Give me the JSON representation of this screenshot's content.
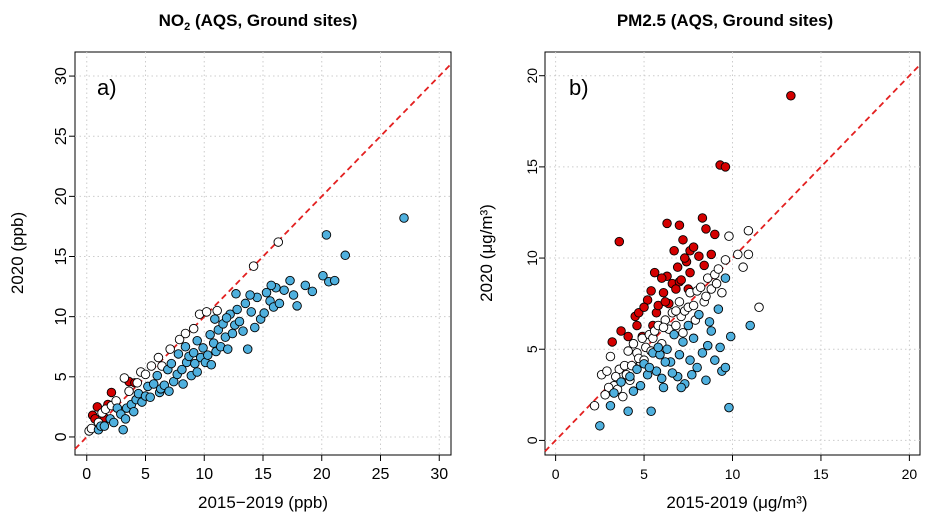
{
  "colors": {
    "increase": "#d40000",
    "similar": "#ffffff",
    "decrease": "#4fb0de",
    "reference_line": "#e32020",
    "grid": "#cccccc"
  },
  "chart_data": [
    {
      "type": "scatter",
      "title_main": "NO",
      "title_sub": "2",
      "title_rest": " (AQS, Ground sites)",
      "panel_label": "a)",
      "xlabel": "2015−2019 (ppb)",
      "ylabel": "2020 (ppb)",
      "xlim": [
        -1,
        31
      ],
      "ylim": [
        -1.5,
        32
      ],
      "xticks": [
        0,
        5,
        10,
        15,
        20,
        25,
        30
      ],
      "yticks": [
        0,
        5,
        10,
        15,
        20,
        25,
        30
      ],
      "reference_line": "y = x",
      "grid": true,
      "series": [
        {
          "color_key": "increase",
          "points": [
            [
              0.5,
              1.8
            ],
            [
              0.9,
              2.5
            ],
            [
              1.8,
              2.7
            ],
            [
              2.1,
              3.7
            ],
            [
              0.7,
              1.5
            ],
            [
              1.5,
              1.6
            ],
            [
              3.6,
              4.6
            ],
            [
              4.1,
              4.5
            ]
          ]
        },
        {
          "color_key": "similar",
          "points": [
            [
              0.2,
              0.5
            ],
            [
              0.4,
              0.7
            ],
            [
              1.0,
              1.2
            ],
            [
              1.3,
              2.0
            ],
            [
              1.6,
              2.3
            ],
            [
              2.1,
              2.6
            ],
            [
              2.5,
              3.0
            ],
            [
              3.2,
              4.9
            ],
            [
              3.6,
              3.8
            ],
            [
              4.3,
              4.5
            ],
            [
              4.6,
              5.4
            ],
            [
              5.0,
              5.2
            ],
            [
              5.5,
              5.9
            ],
            [
              6.1,
              6.6
            ],
            [
              6.4,
              5.9
            ],
            [
              7.1,
              7.3
            ],
            [
              7.9,
              8.1
            ],
            [
              8.4,
              8.6
            ],
            [
              9.1,
              9.0
            ],
            [
              9.6,
              10.2
            ],
            [
              10.2,
              10.4
            ],
            [
              11.1,
              10.5
            ],
            [
              14.2,
              14.2
            ],
            [
              16.3,
              16.2
            ]
          ]
        },
        {
          "color_key": "decrease",
          "points": [
            [
              1.0,
              0.6
            ],
            [
              1.2,
              0.9
            ],
            [
              1.5,
              0.9
            ],
            [
              2.0,
              1.5
            ],
            [
              2.3,
              1.2
            ],
            [
              2.6,
              2.4
            ],
            [
              2.9,
              1.9
            ],
            [
              3.1,
              0.6
            ],
            [
              3.3,
              1.5
            ],
            [
              3.4,
              2.4
            ],
            [
              3.8,
              2.7
            ],
            [
              4.0,
              2.1
            ],
            [
              4.2,
              3.1
            ],
            [
              4.4,
              3.6
            ],
            [
              4.7,
              2.9
            ],
            [
              5.0,
              3.4
            ],
            [
              5.2,
              4.2
            ],
            [
              5.4,
              3.3
            ],
            [
              5.7,
              4.4
            ],
            [
              6.0,
              5.1
            ],
            [
              6.2,
              3.7
            ],
            [
              6.3,
              4.0
            ],
            [
              6.6,
              4.3
            ],
            [
              6.9,
              5.6
            ],
            [
              7.0,
              3.8
            ],
            [
              7.2,
              6.1
            ],
            [
              7.4,
              4.6
            ],
            [
              7.7,
              5.2
            ],
            [
              7.8,
              6.9
            ],
            [
              8.1,
              5.6
            ],
            [
              8.2,
              4.4
            ],
            [
              8.5,
              6.2
            ],
            [
              8.7,
              6.7
            ],
            [
              8.9,
              5.1
            ],
            [
              9.1,
              7.0
            ],
            [
              9.2,
              6.1
            ],
            [
              9.4,
              5.4
            ],
            [
              9.7,
              6.6
            ],
            [
              9.9,
              7.4
            ],
            [
              10.1,
              6.2
            ],
            [
              10.3,
              6.8
            ],
            [
              10.5,
              8.5
            ],
            [
              10.6,
              6.0
            ],
            [
              10.8,
              7.8
            ],
            [
              11.0,
              7.1
            ],
            [
              11.2,
              8.9
            ],
            [
              11.4,
              7.5
            ],
            [
              11.6,
              9.4
            ],
            [
              11.8,
              8.3
            ],
            [
              12.0,
              7.3
            ],
            [
              12.2,
              10.2
            ],
            [
              12.4,
              8.6
            ],
            [
              12.6,
              9.3
            ],
            [
              12.8,
              10.6
            ],
            [
              13.0,
              9.6
            ],
            [
              13.3,
              8.8
            ],
            [
              13.5,
              11.1
            ],
            [
              13.7,
              7.3
            ],
            [
              14.0,
              10.4
            ],
            [
              14.3,
              9.1
            ],
            [
              14.5,
              11.6
            ],
            [
              14.8,
              9.8
            ],
            [
              15.1,
              10.3
            ],
            [
              15.3,
              12.0
            ],
            [
              15.6,
              11.3
            ],
            [
              15.9,
              10.8
            ],
            [
              16.1,
              12.4
            ],
            [
              16.4,
              11.1
            ],
            [
              16.8,
              12.2
            ],
            [
              17.3,
              13.0
            ],
            [
              17.6,
              11.8
            ],
            [
              17.9,
              10.9
            ],
            [
              18.6,
              12.6
            ],
            [
              19.2,
              12.1
            ],
            [
              20.1,
              13.4
            ],
            [
              20.4,
              16.8
            ],
            [
              20.6,
              12.9
            ],
            [
              21.1,
              13.0
            ],
            [
              22.0,
              15.1
            ],
            [
              27.0,
              18.2
            ],
            [
              11.9,
              9.9
            ],
            [
              13.9,
              11.8
            ],
            [
              15.7,
              12.6
            ],
            [
              9.4,
              8.0
            ],
            [
              10.9,
              9.8
            ],
            [
              8.4,
              7.5
            ],
            [
              12.7,
              11.9
            ]
          ]
        }
      ]
    },
    {
      "type": "scatter",
      "title_main": "PM2.5 (AQS, Ground sites)",
      "title_sub": "",
      "title_rest": "",
      "panel_label": "b)",
      "xlabel": "2015-2019 (μg/m³)",
      "ylabel": "2020 (μg/m³)",
      "xlim": [
        -0.6,
        20.6
      ],
      "ylim": [
        -0.8,
        21.3
      ],
      "xticks": [
        0,
        5,
        10,
        15,
        20
      ],
      "yticks": [
        0,
        5,
        10,
        15,
        20
      ],
      "reference_line": "y = x",
      "grid": true,
      "series": [
        {
          "color_key": "increase",
          "points": [
            [
              13.3,
              18.9
            ],
            [
              9.3,
              15.1
            ],
            [
              9.6,
              15.0
            ],
            [
              8.3,
              12.2
            ],
            [
              6.3,
              11.9
            ],
            [
              7.0,
              11.8
            ],
            [
              3.6,
              10.9
            ],
            [
              7.2,
              11.0
            ],
            [
              7.6,
              10.4
            ],
            [
              8.5,
              11.6
            ],
            [
              9.0,
              11.3
            ],
            [
              8.8,
              10.2
            ],
            [
              6.9,
              9.5
            ],
            [
              7.4,
              9.8
            ],
            [
              6.6,
              8.6
            ],
            [
              5.2,
              7.7
            ],
            [
              6.4,
              7.5
            ],
            [
              5.7,
              7.0
            ],
            [
              4.5,
              6.8
            ],
            [
              4.9,
              5.7
            ],
            [
              6.1,
              8.1
            ],
            [
              6.3,
              9.0
            ],
            [
              5.5,
              6.3
            ],
            [
              5.6,
              9.2
            ],
            [
              7.0,
              8.7
            ],
            [
              7.1,
              8.8
            ],
            [
              7.3,
              10.0
            ],
            [
              8.1,
              10.1
            ],
            [
              3.2,
              5.4
            ],
            [
              4.1,
              5.7
            ],
            [
              3.7,
              6.0
            ],
            [
              5.8,
              7.4
            ],
            [
              6.8,
              8.3
            ],
            [
              6.2,
              7.6
            ],
            [
              7.6,
              9.2
            ],
            [
              4.7,
              7.0
            ],
            [
              5.0,
              7.3
            ],
            [
              7.5,
              8.3
            ],
            [
              8.4,
              9.6
            ],
            [
              6.7,
              10.4
            ],
            [
              6.0,
              8.9
            ],
            [
              5.4,
              8.2
            ],
            [
              4.6,
              6.3
            ],
            [
              7.8,
              10.6
            ]
          ]
        },
        {
          "color_key": "similar",
          "points": [
            [
              2.2,
              1.9
            ],
            [
              2.6,
              3.6
            ],
            [
              2.9,
              3.8
            ],
            [
              3.1,
              4.6
            ],
            [
              3.3,
              3.0
            ],
            [
              3.6,
              3.9
            ],
            [
              3.8,
              2.4
            ],
            [
              3.9,
              4.1
            ],
            [
              4.1,
              4.9
            ],
            [
              4.3,
              4.1
            ],
            [
              4.4,
              5.3
            ],
            [
              4.6,
              4.8
            ],
            [
              4.8,
              4.3
            ],
            [
              4.9,
              5.6
            ],
            [
              5.1,
              5.1
            ],
            [
              5.3,
              5.8
            ],
            [
              5.5,
              5.6
            ],
            [
              5.6,
              6.0
            ],
            [
              5.8,
              6.3
            ],
            [
              6.0,
              5.3
            ],
            [
              6.2,
              6.6
            ],
            [
              6.4,
              6.1
            ],
            [
              6.6,
              7.0
            ],
            [
              6.8,
              6.3
            ],
            [
              7.0,
              7.6
            ],
            [
              7.1,
              6.8
            ],
            [
              7.3,
              7.1
            ],
            [
              7.5,
              7.3
            ],
            [
              7.6,
              8.1
            ],
            [
              7.8,
              7.4
            ],
            [
              8.0,
              8.2
            ],
            [
              8.2,
              8.4
            ],
            [
              8.4,
              7.6
            ],
            [
              8.6,
              8.9
            ],
            [
              8.8,
              8.3
            ],
            [
              9.0,
              9.1
            ],
            [
              9.2,
              9.4
            ],
            [
              9.4,
              8.1
            ],
            [
              9.6,
              9.9
            ],
            [
              9.8,
              11.2
            ],
            [
              10.3,
              10.2
            ],
            [
              10.6,
              9.5
            ],
            [
              10.9,
              10.2
            ],
            [
              10.9,
              11.5
            ],
            [
              11.5,
              7.3
            ],
            [
              3.4,
              3.5
            ],
            [
              4.2,
              3.3
            ],
            [
              4.7,
              4.5
            ],
            [
              5.4,
              4.9
            ],
            [
              6.1,
              6.2
            ],
            [
              6.8,
              7.1
            ],
            [
              7.2,
              5.9
            ],
            [
              7.9,
              6.6
            ],
            [
              8.5,
              7.9
            ],
            [
              9.1,
              8.6
            ],
            [
              3.0,
              2.9
            ],
            [
              2.8,
              2.5
            ],
            [
              3.5,
              2.8
            ],
            [
              4.0,
              3.6
            ],
            [
              5.0,
              4.4
            ]
          ]
        },
        {
          "color_key": "decrease",
          "points": [
            [
              2.5,
              0.8
            ],
            [
              3.1,
              1.9
            ],
            [
              3.3,
              2.6
            ],
            [
              4.1,
              1.6
            ],
            [
              3.7,
              3.2
            ],
            [
              4.2,
              3.5
            ],
            [
              4.4,
              2.7
            ],
            [
              4.6,
              3.9
            ],
            [
              4.8,
              3.0
            ],
            [
              5.0,
              4.2
            ],
            [
              5.2,
              3.6
            ],
            [
              5.4,
              1.6
            ],
            [
              5.5,
              4.8
            ],
            [
              5.7,
              3.8
            ],
            [
              5.9,
              4.7
            ],
            [
              6.1,
              2.9
            ],
            [
              6.3,
              5.0
            ],
            [
              6.5,
              4.3
            ],
            [
              6.7,
              5.8
            ],
            [
              6.9,
              3.5
            ],
            [
              7.0,
              4.7
            ],
            [
              7.2,
              5.4
            ],
            [
              7.3,
              3.1
            ],
            [
              7.5,
              6.3
            ],
            [
              7.6,
              4.4
            ],
            [
              7.8,
              5.6
            ],
            [
              8.0,
              4.0
            ],
            [
              8.1,
              6.9
            ],
            [
              8.3,
              4.8
            ],
            [
              8.5,
              3.3
            ],
            [
              8.6,
              5.2
            ],
            [
              8.8,
              6.0
            ],
            [
              9.0,
              4.4
            ],
            [
              9.2,
              7.2
            ],
            [
              9.4,
              3.8
            ],
            [
              9.6,
              8.9
            ],
            [
              9.6,
              4.0
            ],
            [
              9.8,
              1.8
            ],
            [
              9.9,
              5.7
            ],
            [
              11.0,
              6.3
            ],
            [
              5.3,
              4.0
            ],
            [
              5.8,
              5.1
            ],
            [
              6.2,
              4.3
            ],
            [
              6.6,
              3.7
            ],
            [
              7.1,
              2.9
            ],
            [
              7.7,
              3.6
            ],
            [
              8.7,
              6.5
            ],
            [
              9.3,
              5.1
            ],
            [
              6.0,
              3.4
            ]
          ]
        }
      ]
    }
  ]
}
